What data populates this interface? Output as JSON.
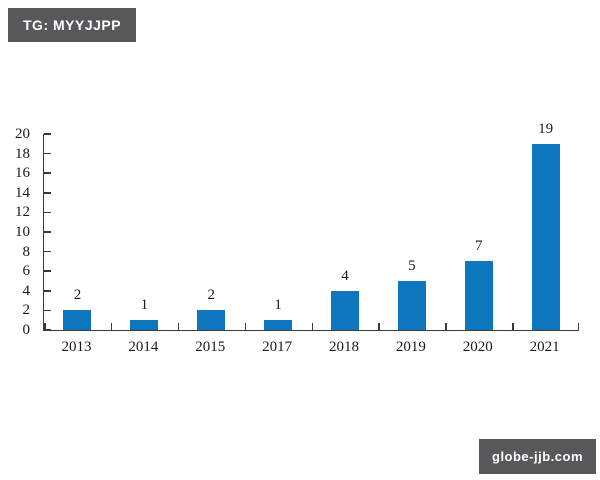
{
  "header": {
    "tag_label": "TG: MYYJJPP"
  },
  "footer": {
    "site_label": "globe-jjb.com"
  },
  "chart_data": {
    "type": "bar",
    "categories": [
      "2013",
      "2014",
      "2015",
      "2017",
      "2018",
      "2019",
      "2020",
      "2021"
    ],
    "values": [
      2,
      1,
      2,
      1,
      4,
      5,
      7,
      19
    ],
    "title": "",
    "xlabel": "",
    "ylabel": "",
    "ylim": [
      0,
      20
    ],
    "ytick_step": 2,
    "yticks": [
      0,
      2,
      4,
      6,
      8,
      10,
      12,
      14,
      16,
      18,
      20
    ],
    "bar_color": "#0e76bd",
    "axis_color": "#3a3a3a",
    "text_color": "#1a1a1a",
    "badge_bg": "#58585b",
    "badge_text_color": "#ffffff",
    "grid": false,
    "legend": null,
    "value_labels_shown": true
  }
}
